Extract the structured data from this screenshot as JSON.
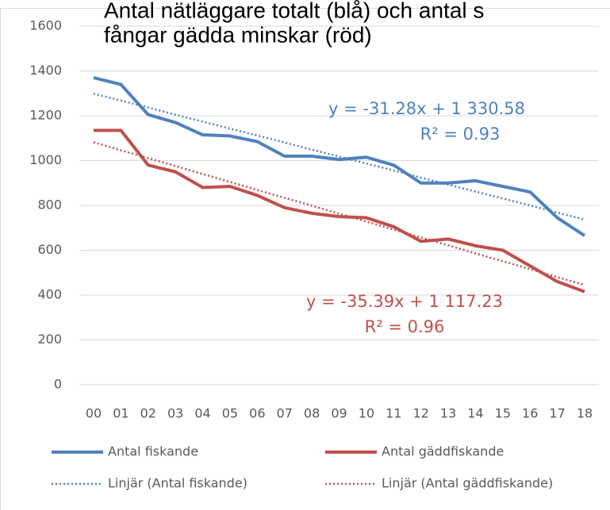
{
  "chart_data": {
    "type": "line",
    "title": [
      "Antal nätläggare totalt (blå) och antal s",
      "fångar gädda minskar (röd)"
    ],
    "categories": [
      "00",
      "01",
      "02",
      "03",
      "04",
      "05",
      "06",
      "07",
      "08",
      "09",
      "10",
      "11",
      "12",
      "13",
      "14",
      "15",
      "16",
      "17",
      "18"
    ],
    "series": [
      {
        "name": "Antal fiskande",
        "color": "#4f81bd",
        "style": "solid",
        "values": [
          1370,
          1340,
          1205,
          1170,
          1115,
          1110,
          1085,
          1020,
          1020,
          1005,
          1015,
          980,
          900,
          900,
          910,
          885,
          860,
          745,
          665
        ]
      },
      {
        "name": "Antal gäddfiskande",
        "color": "#c0504d",
        "style": "solid",
        "values": [
          1135,
          1135,
          980,
          950,
          880,
          885,
          845,
          790,
          765,
          750,
          745,
          705,
          640,
          650,
          620,
          600,
          530,
          460,
          415
        ]
      },
      {
        "name": "Linjär (Antal fiskande)",
        "color": "#4f81bd",
        "style": "dotted",
        "values": [
          1299,
          1268,
          1237,
          1205,
          1174,
          1143,
          1112,
          1081,
          1049,
          1018,
          987,
          956,
          924,
          893,
          862,
          831,
          800,
          768,
          737
        ]
      },
      {
        "name": "Linjär (Antal gäddfiskande)",
        "color": "#c0504d",
        "style": "dotted",
        "values": [
          1082,
          1046,
          1011,
          976,
          940,
          905,
          869,
          834,
          799,
          763,
          728,
          692,
          657,
          622,
          586,
          551,
          516,
          480,
          445
        ]
      }
    ],
    "annotations": [
      {
        "text": "y = -31.28x + 1 330.58",
        "color": "#4f81bd"
      },
      {
        "text": "R² = 0.93",
        "color": "#4f81bd"
      },
      {
        "text": "y = -35.39x + 1 117.23",
        "color": "#c0504d"
      },
      {
        "text": "R² = 0.96",
        "color": "#c0504d"
      }
    ],
    "ylim": [
      0,
      1600
    ],
    "yticks": [
      0,
      200,
      400,
      600,
      800,
      1000,
      1200,
      1400,
      1600
    ],
    "grid": true,
    "legend": "bottom"
  }
}
